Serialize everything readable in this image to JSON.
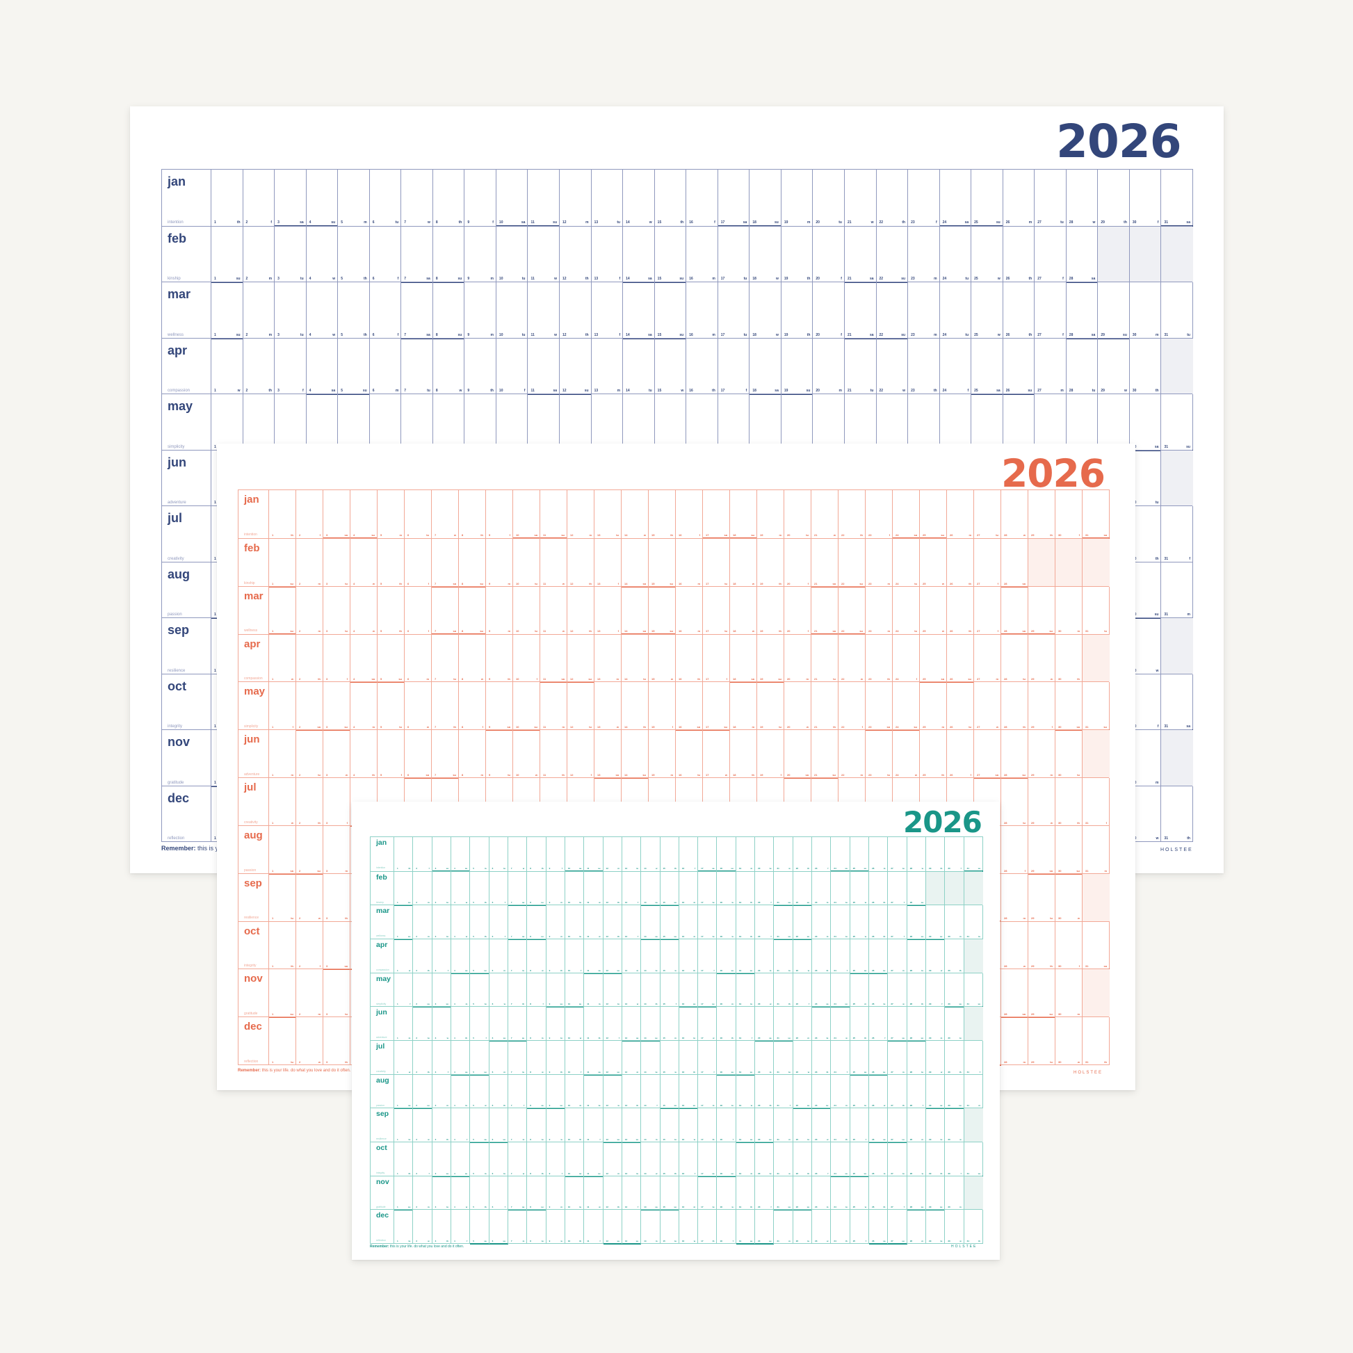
{
  "year": "2026",
  "brand": "HOLSTEE",
  "footer": {
    "bold": "Remember:",
    "text": " this is your life. do what you love and do it often."
  },
  "months": [
    {
      "name": "jan",
      "theme": "intention",
      "days": 31,
      "start": 4
    },
    {
      "name": "feb",
      "theme": "kinship",
      "days": 28,
      "start": 0
    },
    {
      "name": "mar",
      "theme": "wellness",
      "days": 31,
      "start": 0
    },
    {
      "name": "apr",
      "theme": "compassion",
      "days": 30,
      "start": 3
    },
    {
      "name": "may",
      "theme": "simplicity",
      "days": 31,
      "start": 5
    },
    {
      "name": "jun",
      "theme": "adventure",
      "days": 30,
      "start": 1
    },
    {
      "name": "jul",
      "theme": "creativity",
      "days": 31,
      "start": 3
    },
    {
      "name": "aug",
      "theme": "passion",
      "days": 31,
      "start": 6
    },
    {
      "name": "sep",
      "theme": "resilience",
      "days": 30,
      "start": 2
    },
    {
      "name": "oct",
      "theme": "integrity",
      "days": 31,
      "start": 4
    },
    {
      "name": "nov",
      "theme": "gratitude",
      "days": 30,
      "start": 0
    },
    {
      "name": "dec",
      "theme": "reflection",
      "days": 31,
      "start": 2
    }
  ],
  "weekdays": [
    "su",
    "m",
    "tu",
    "w",
    "th",
    "f",
    "sa"
  ],
  "colors": {
    "navy": "#33467a",
    "coral": "#e66a4c",
    "teal": "#1a9688",
    "background": "#f6f5f1"
  },
  "posters": [
    {
      "id": "navy",
      "accent": "#33467a",
      "line": "#8f98bd",
      "fill": "#eff0f4",
      "week": "#33467a"
    },
    {
      "id": "coral",
      "accent": "#e66a4c",
      "line": "#f2a896",
      "fill": "#fdf0ec",
      "week": "#e66a4c"
    },
    {
      "id": "teal",
      "accent": "#1a9688",
      "line": "#8dd1c6",
      "fill": "#e9f3f1",
      "week": "#1a9688"
    }
  ]
}
